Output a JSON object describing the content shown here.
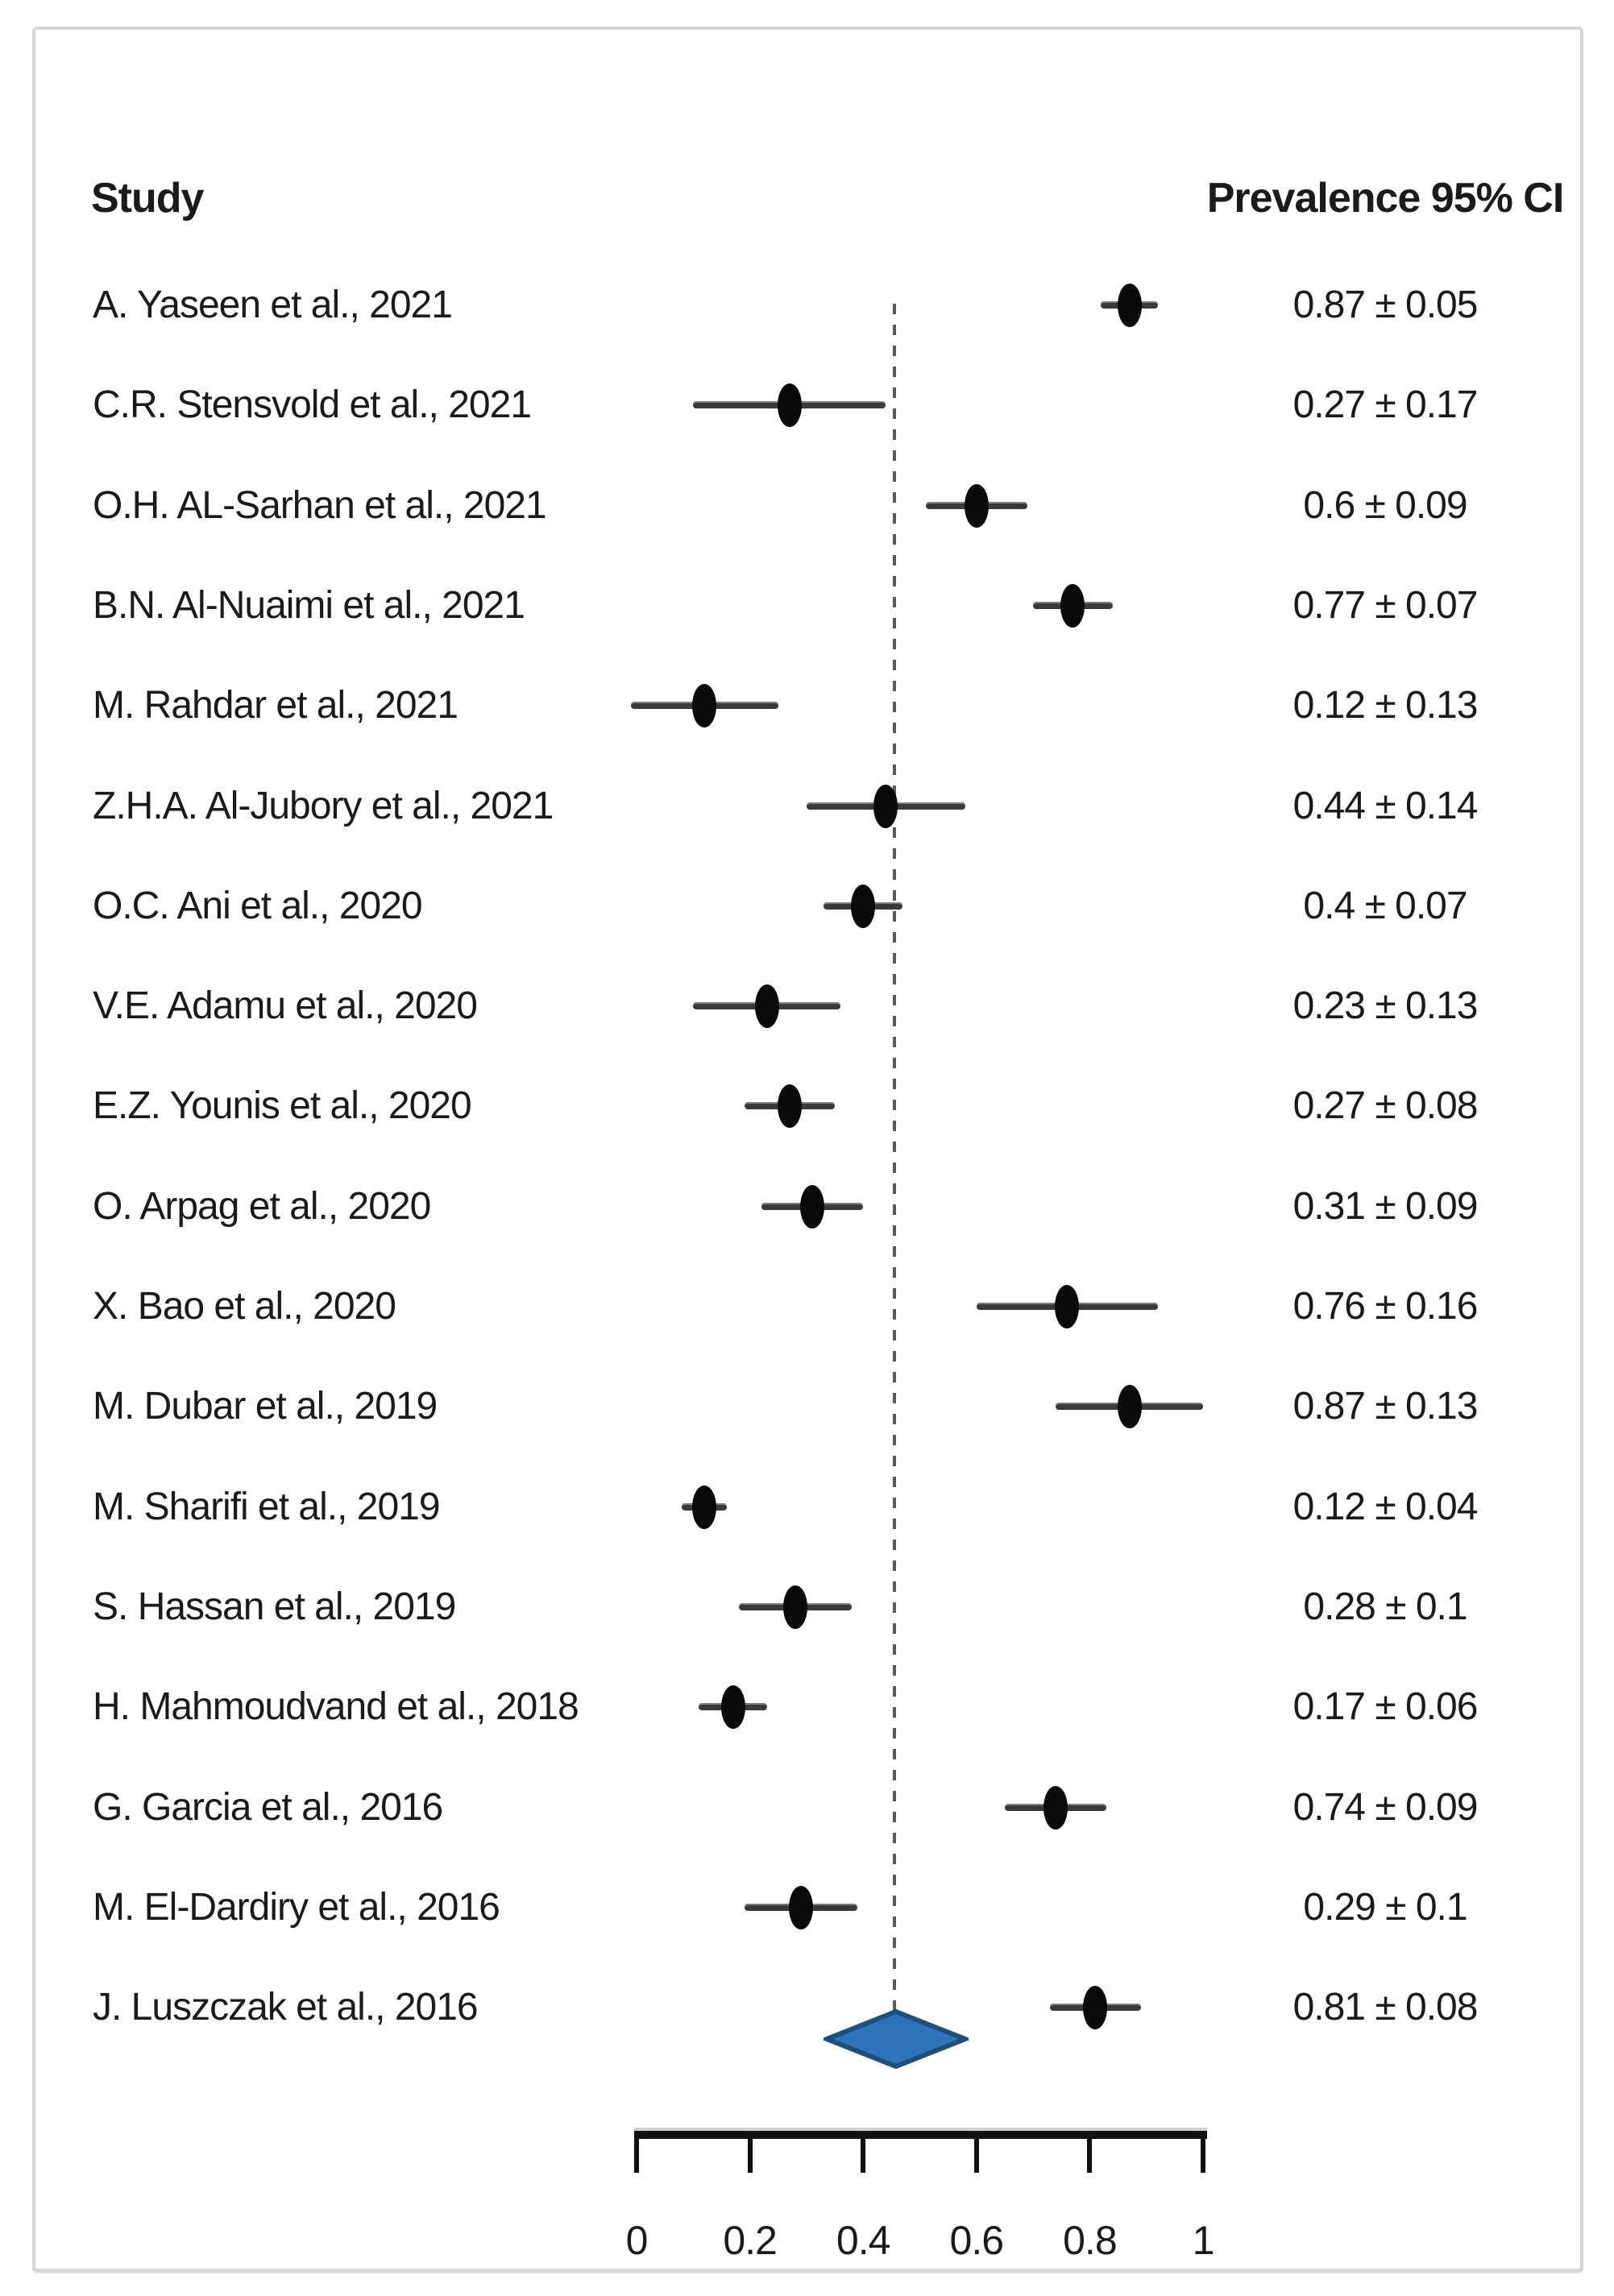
{
  "header": {
    "study_col": "Study",
    "value_col": "Prevalence 95% CI"
  },
  "chart_data": {
    "type": "scatter",
    "subtype": "forest-plot",
    "title": "",
    "xlabel": "",
    "ylabel": "",
    "x_axis": {
      "min": 0,
      "max": 1,
      "tick_values": [
        0,
        0.2,
        0.4,
        0.6,
        0.8,
        1
      ],
      "tick_labels": [
        "0",
        "0.2",
        "0.4",
        "0.6",
        "0.8",
        "1"
      ]
    },
    "grid": false,
    "legend": false,
    "reference_line_value": 0.455,
    "marker_color": "#0a0a0a",
    "ci_line_color": "#3a3a3a",
    "rows": [
      {
        "study": "A. Yaseen et al., 2021",
        "value": 0.87,
        "error": 0.05,
        "ci_text": "0.87 ± 0.05"
      },
      {
        "study": "C.R. Stensvold et al., 2021",
        "value": 0.27,
        "error": 0.17,
        "ci_text": "0.27 ± 0.17"
      },
      {
        "study": "O.H. AL-Sarhan et al., 2021",
        "value": 0.6,
        "error": 0.09,
        "ci_text": "0.6 ± 0.09"
      },
      {
        "study": "B.N. Al-Nuaimi et al., 2021",
        "value": 0.77,
        "error": 0.07,
        "ci_text": "0.77 ± 0.07"
      },
      {
        "study": "M. Rahdar et al., 2021",
        "value": 0.12,
        "error": 0.13,
        "ci_text": "0.12 ± 0.13"
      },
      {
        "study": "Z.H.A. Al-Jubory et al., 2021",
        "value": 0.44,
        "error": 0.14,
        "ci_text": "0.44 ± 0.14"
      },
      {
        "study": "O.C. Ani et al., 2020",
        "value": 0.4,
        "error": 0.07,
        "ci_text": "0.4 ± 0.07"
      },
      {
        "study": "V.E. Adamu et al., 2020",
        "value": 0.23,
        "error": 0.13,
        "ci_text": "0.23 ± 0.13"
      },
      {
        "study": "E.Z. Younis et al., 2020",
        "value": 0.27,
        "error": 0.08,
        "ci_text": "0.27 ± 0.08"
      },
      {
        "study": "O. Arpag et al., 2020",
        "value": 0.31,
        "error": 0.09,
        "ci_text": "0.31 ± 0.09"
      },
      {
        "study": "X. Bao et al., 2020",
        "value": 0.76,
        "error": 0.16,
        "ci_text": "0.76 ± 0.16"
      },
      {
        "study": "M. Dubar et al., 2019",
        "value": 0.87,
        "error": 0.13,
        "ci_text": "0.87 ± 0.13"
      },
      {
        "study": "M. Sharifi et al., 2019",
        "value": 0.12,
        "error": 0.04,
        "ci_text": "0.12 ± 0.04"
      },
      {
        "study": "S. Hassan et al., 2019",
        "value": 0.28,
        "error": 0.1,
        "ci_text": "0.28 ± 0.1"
      },
      {
        "study": "H. Mahmoudvand et al., 2018",
        "value": 0.17,
        "error": 0.06,
        "ci_text": "0.17 ± 0.06"
      },
      {
        "study": "G. Garcia et al., 2016",
        "value": 0.74,
        "error": 0.09,
        "ci_text": "0.74 ± 0.09"
      },
      {
        "study": "M. El-Dardiry et al., 2016",
        "value": 0.29,
        "error": 0.1,
        "ci_text": "0.29 ± 0.1"
      },
      {
        "study": "J. Luszczak et al., 2016",
        "value": 0.81,
        "error": 0.08,
        "ci_text": "0.81 ± 0.08"
      }
    ],
    "pooled": {
      "value": 0.457,
      "low": 0.335,
      "high": 0.58,
      "fill_color": "#2E74B8",
      "stroke_color": "#1F4E79"
    }
  }
}
